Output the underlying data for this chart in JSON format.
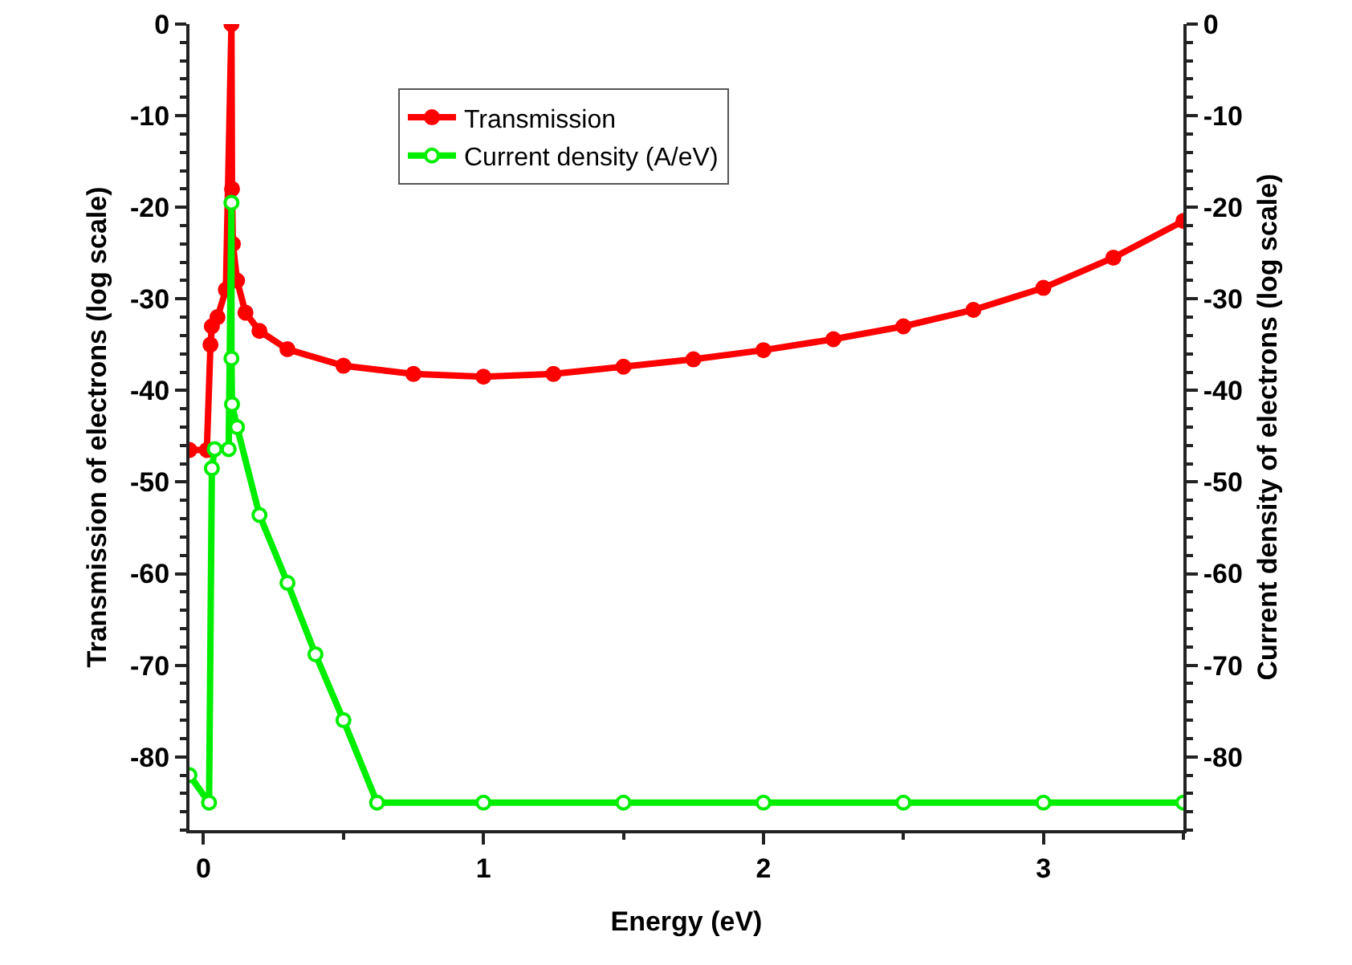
{
  "chart_data": {
    "type": "line",
    "xlabel": "Energy (eV)",
    "ylabel": "Transmission of electrons (log scale)",
    "y2label": "Current density of electrons (log scale)",
    "series": [
      {
        "name": "Transmission",
        "color": "#ff0000",
        "x": [
          -0.05,
          0.012,
          0.025,
          0.03,
          0.05,
          0.08,
          0.1,
          0.102,
          0.105,
          0.12,
          0.15,
          0.2,
          0.3,
          0.5,
          0.75,
          1,
          1.25,
          1.5,
          1.75,
          2,
          2.25,
          2.5,
          2.75,
          3,
          3.25,
          3.5
        ],
        "values": [
          -46.5,
          -46.5,
          -35,
          -33,
          -32,
          -29,
          0,
          -18,
          -24,
          -28,
          -31.5,
          -33.5,
          -35.5,
          -37.3,
          -38.2,
          -38.5,
          -38.2,
          -37.4,
          -36.6,
          -35.6,
          -34.4,
          -33,
          -31.2,
          -28.8,
          -25.5,
          -21.5
        ]
      },
      {
        "name": "Current density (A/eV)",
        "color": "#00ee00",
        "x": [
          -0.05,
          0.02,
          0.03,
          0.04,
          0.09,
          0.1,
          0.1,
          0.102,
          0.12,
          0.2,
          0.3,
          0.4,
          0.5,
          0.62,
          1,
          1.5,
          2,
          2.5,
          3,
          3.5
        ],
        "values": [
          -82,
          -85,
          -48.5,
          -46.4,
          -46.4,
          -19.5,
          -36.5,
          -41.5,
          -44,
          -53.6,
          -61,
          -68.8,
          -76,
          -85,
          -85,
          -85,
          -85,
          -85,
          -85,
          -85
        ]
      }
    ],
    "xlim": [
      -0.05,
      3.5
    ],
    "xticks": [
      0,
      1,
      2,
      3
    ],
    "ylim": [
      -88,
      0
    ],
    "yticks": [
      -80,
      -70,
      -60,
      -50,
      -40,
      -30,
      -20,
      -10,
      0
    ],
    "y2lim": [
      -88,
      0
    ],
    "y2ticks": [
      -80,
      -70,
      -60,
      -50,
      -40,
      -30,
      -20,
      -10,
      0
    ],
    "grid": false,
    "legend": "top",
    "marker": "circle",
    "line_style": "solid"
  }
}
